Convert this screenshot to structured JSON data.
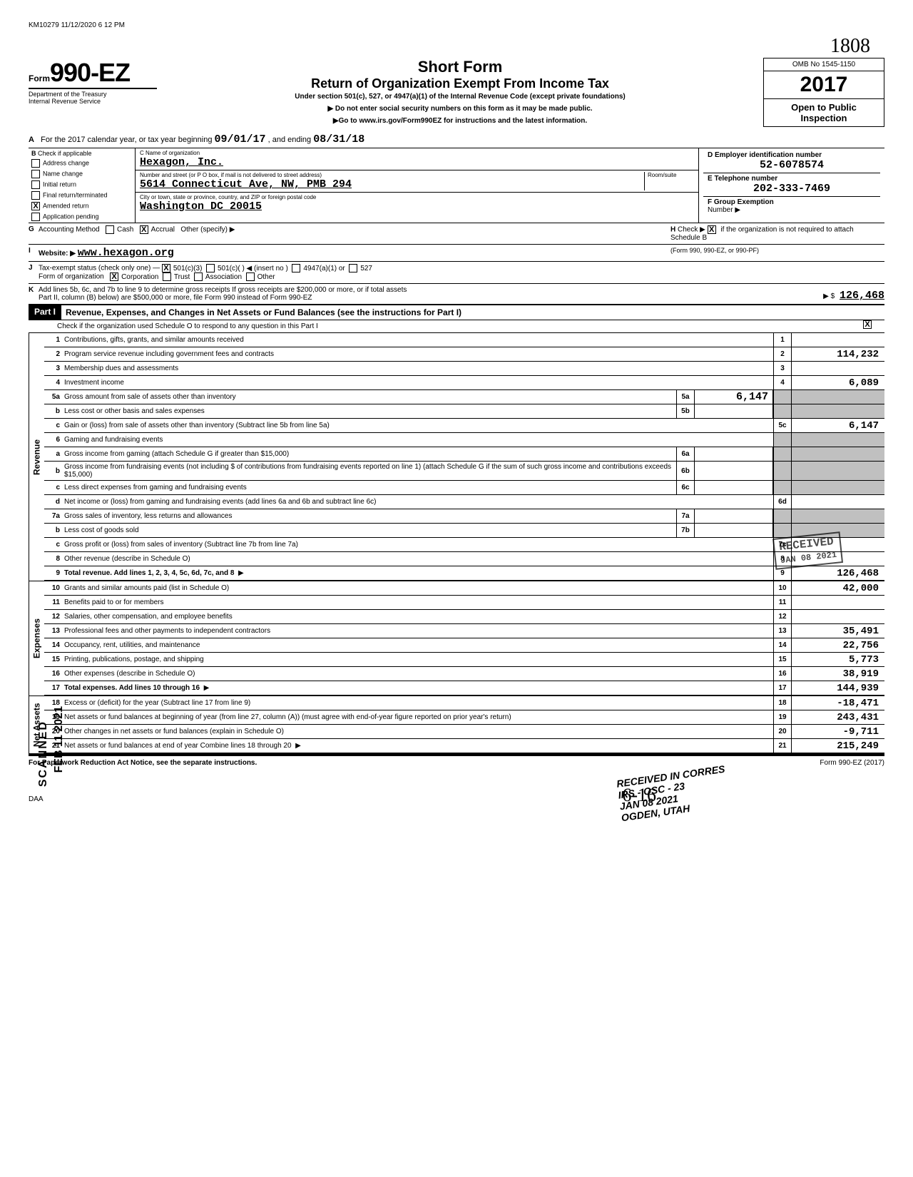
{
  "meta": {
    "top_left": "KM10279 11/12/2020 6 12 PM"
  },
  "header": {
    "form_word": "Form",
    "form_number": "990-EZ",
    "title": "Short Form",
    "subtitle": "Return of Organization Exempt From Income Tax",
    "under": "Under section 501(c), 527, or 4947(a)(1) of the Internal Revenue Code (except private foundations)",
    "warn": "▶ Do not enter social security numbers on this form as it may be made public.",
    "goto": "▶Go to www.irs.gov/Form990EZ for instructions and the latest information.",
    "omb": "OMB No 1545-1150",
    "year_hand": "1808",
    "year": "2017",
    "open": "Open to Public Inspection",
    "dept1": "Department of the Treasury",
    "dept2": "Internal Revenue Service"
  },
  "lineA": {
    "prefix": "For the 2017 calendar year, or tax year beginning",
    "begin": "09/01/17",
    "mid": ", and ending",
    "end": "08/31/18"
  },
  "B": {
    "heading": "Check if applicable",
    "items": [
      "Address change",
      "Name change",
      "Initial return",
      "Final return/terminated",
      "Amended return",
      "Application pending"
    ],
    "checked_idx": 4
  },
  "C": {
    "name_label": "C  Name of organization",
    "name": "Hexagon, Inc.",
    "addr_label": "Number and street (or P O box, if mail is not delivered to street address)",
    "room_label": "Room/suite",
    "addr": "5614 Connecticut Ave, NW, PMB 294",
    "city_label": "City or town, state or province, country, and ZIP or foreign postal code",
    "city": "Washington                DC 20015"
  },
  "D": {
    "label": "D  Employer identification number",
    "val": "52-6078574"
  },
  "E": {
    "label": "E  Telephone number",
    "val": "202-333-7469"
  },
  "F": {
    "label": "F  Group Exemption",
    "sub": "Number ▶"
  },
  "G": {
    "label": "Accounting Method",
    "cash": "Cash",
    "accrual": "Accrual",
    "other": "Other (specify) ▶",
    "accrual_checked": true
  },
  "H": {
    "text": "Check ▶",
    "checked": true,
    "rest": "if the organization is not required to attach Schedule B",
    "rest2": "(Form 990, 990-EZ, or 990-PF)"
  },
  "I": {
    "label": "Website: ▶",
    "val": "www.hexagon.org"
  },
  "J": {
    "label": "Tax-exempt status (check only one) —",
    "opts": [
      "501(c)(3)",
      "501(c)(    ) ◀ (insert no )",
      "4947(a)(1) or",
      "527"
    ],
    "checked_idx": 0,
    "form_label": "Form of organization",
    "form_opts": [
      "Corporation",
      "Trust",
      "Association",
      "Other"
    ],
    "form_checked_idx": 0
  },
  "K": {
    "text1": "Add lines 5b, 6c, and 7b to line 9 to determine gross receipts  If gross receipts are $200,000 or more, or if total assets",
    "text2": "Part II, column (B) below) are $500,000 or more, file Form 990 instead of Form 990-EZ",
    "arrow": "▶ $",
    "val": "126,468"
  },
  "partI": {
    "label": "Part I",
    "title": "Revenue, Expenses, and Changes in Net Assets or Fund Balances (see the instructions for Part I)",
    "check_line": "Check if the organization used Schedule O to respond to any question in this Part I",
    "checked": true
  },
  "revenue_label": "Revenue",
  "expenses_label": "Expenses",
  "netassets_label": "Net Assets",
  "lines": {
    "1": {
      "n": "1",
      "d": "Contributions, gifts, grants, and similar amounts received",
      "box": "1",
      "v": ""
    },
    "2": {
      "n": "2",
      "d": "Program service revenue including government fees and contracts",
      "box": "2",
      "v": "114,232"
    },
    "3": {
      "n": "3",
      "d": "Membership dues and assessments",
      "box": "3",
      "v": ""
    },
    "4": {
      "n": "4",
      "d": "Investment income",
      "box": "4",
      "v": "6,089"
    },
    "5a": {
      "n": "5a",
      "d": "Gross amount from sale of assets other than inventory",
      "mid": "5a",
      "midv": "6,147"
    },
    "5b": {
      "n": "b",
      "d": "Less  cost or other basis and sales expenses",
      "mid": "5b",
      "midv": ""
    },
    "5c": {
      "n": "c",
      "d": "Gain or (loss) from sale of assets other than inventory (Subtract line 5b from line 5a)",
      "box": "5c",
      "v": "6,147"
    },
    "6": {
      "n": "6",
      "d": "Gaming and fundraising events"
    },
    "6a": {
      "n": "a",
      "d": "Gross income from gaming (attach Schedule G if greater than $15,000)",
      "mid": "6a",
      "midv": ""
    },
    "6b": {
      "n": "b",
      "d": "Gross income from fundraising events (not including $                    of contributions from fundraising events reported on line 1) (attach Schedule G if the sum of such gross income and contributions exceeds $15,000)",
      "mid": "6b",
      "midv": ""
    },
    "6c": {
      "n": "c",
      "d": "Less  direct expenses from gaming and fundraising events",
      "mid": "6c",
      "midv": ""
    },
    "6d": {
      "n": "d",
      "d": "Net income or (loss) from gaming and fundraising events (add lines 6a and 6b and subtract line 6c)",
      "box": "6d",
      "v": ""
    },
    "7a": {
      "n": "7a",
      "d": "Gross sales of inventory, less returns and allowances",
      "mid": "7a",
      "midv": ""
    },
    "7b": {
      "n": "b",
      "d": "Less  cost of goods sold",
      "mid": "7b",
      "midv": ""
    },
    "7c": {
      "n": "c",
      "d": "Gross profit or (loss) from sales of inventory (Subtract line 7b from line 7a)",
      "box": "7c",
      "v": ""
    },
    "8": {
      "n": "8",
      "d": "Other revenue (describe in Schedule O)",
      "box": "8",
      "v": ""
    },
    "9": {
      "n": "9",
      "d": "Total revenue. Add lines 1, 2, 3, 4, 5c, 6d, 7c, and 8",
      "box": "9",
      "v": "126,468",
      "bold": true,
      "arrow": true
    },
    "10": {
      "n": "10",
      "d": "Grants and similar amounts paid (list in Schedule O)",
      "box": "10",
      "v": "42,000"
    },
    "11": {
      "n": "11",
      "d": "Benefits paid to or for members",
      "box": "11",
      "v": ""
    },
    "12": {
      "n": "12",
      "d": "Salaries, other compensation, and employee benefits",
      "box": "12",
      "v": ""
    },
    "13": {
      "n": "13",
      "d": "Professional fees and other payments to independent contractors",
      "box": "13",
      "v": "35,491"
    },
    "14": {
      "n": "14",
      "d": "Occupancy, rent, utilities, and maintenance",
      "box": "14",
      "v": "22,756"
    },
    "15": {
      "n": "15",
      "d": "Printing, publications, postage, and shipping",
      "box": "15",
      "v": "5,773"
    },
    "16": {
      "n": "16",
      "d": "Other expenses (describe in Schedule O)",
      "box": "16",
      "v": "38,919"
    },
    "17": {
      "n": "17",
      "d": "Total expenses. Add lines 10 through 16",
      "box": "17",
      "v": "144,939",
      "bold": true,
      "arrow": true
    },
    "18": {
      "n": "18",
      "d": "Excess or (deficit) for the year (Subtract line 17 from line 9)",
      "box": "18",
      "v": "-18,471"
    },
    "19": {
      "n": "19",
      "d": "Net assets or fund balances at beginning of year (from line 27, column (A)) (must agree with end-of-year figure reported on prior year's return)",
      "box": "19",
      "v": "243,431"
    },
    "20": {
      "n": "20",
      "d": "Other changes in net assets or fund balances (explain in Schedule O)",
      "box": "20",
      "v": "-9,711"
    },
    "21": {
      "n": "21",
      "d": "Net assets or fund balances at end of year  Combine lines 18 through 20",
      "box": "21",
      "v": "215,249",
      "arrow": true
    }
  },
  "stamps": {
    "received1": "RECEIVED",
    "date1": "JAN 08 2021",
    "ogden": "OGDEN, UTAH",
    "received2": "RECEIVED IN CORRES",
    "irs_osc": "IRS - OSC - 23",
    "jan08": "JAN 08 2021",
    "scan": "SCANNED",
    "feb": "FEB 11 2021",
    "hand_616": "6-16"
  },
  "footer": {
    "left": "For Paperwork Reduction Act Notice, see the separate instructions.",
    "right": "Form 990-EZ (2017)",
    "daa": "DAA"
  }
}
